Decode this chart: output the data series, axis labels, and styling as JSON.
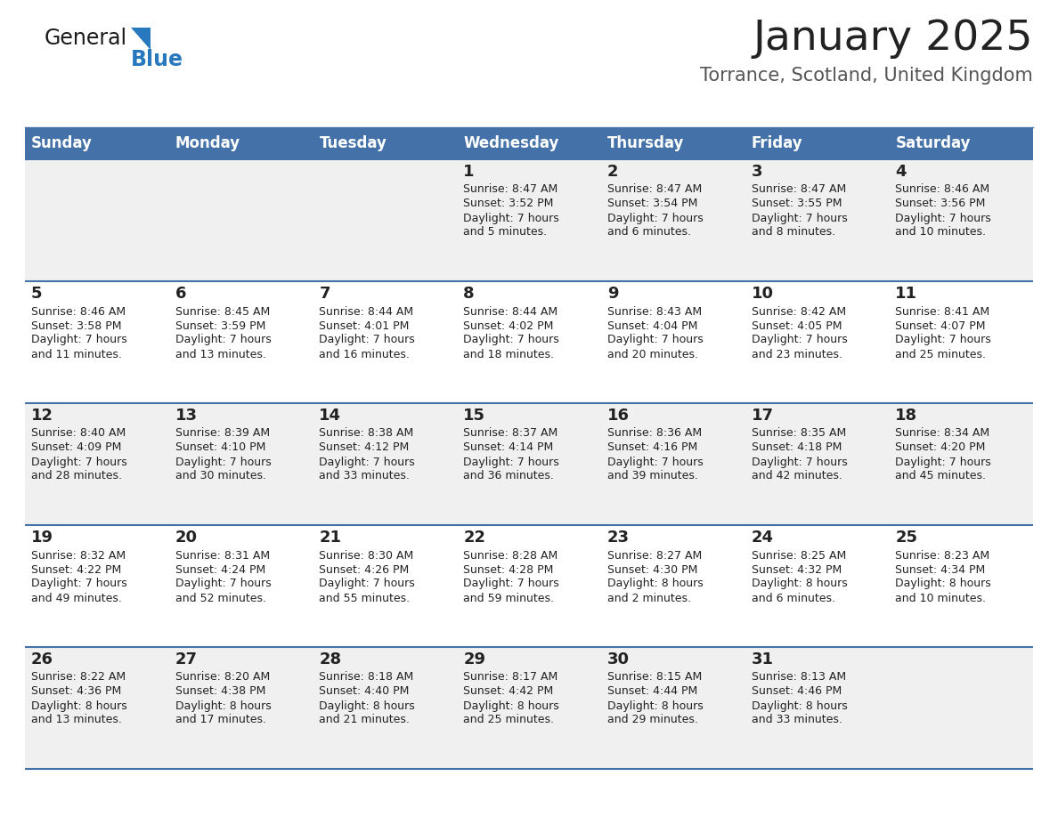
{
  "title": "January 2025",
  "subtitle": "Torrance, Scotland, United Kingdom",
  "header_bg_color": "#4472a8",
  "header_text_color": "#ffffff",
  "weekdays": [
    "Sunday",
    "Monday",
    "Tuesday",
    "Wednesday",
    "Thursday",
    "Friday",
    "Saturday"
  ],
  "row_bg_even": "#f0f0f0",
  "row_bg_odd": "#ffffff",
  "cell_border_color": "#4472a8",
  "day_number_color": "#222222",
  "info_text_color": "#222222",
  "subtitle_color": "#555555",
  "calendar": [
    [
      null,
      null,
      null,
      {
        "day": 1,
        "sunrise": "8:47 AM",
        "sunset": "3:52 PM",
        "daylight": "7 hours and 5 minutes."
      },
      {
        "day": 2,
        "sunrise": "8:47 AM",
        "sunset": "3:54 PM",
        "daylight": "7 hours and 6 minutes."
      },
      {
        "day": 3,
        "sunrise": "8:47 AM",
        "sunset": "3:55 PM",
        "daylight": "7 hours and 8 minutes."
      },
      {
        "day": 4,
        "sunrise": "8:46 AM",
        "sunset": "3:56 PM",
        "daylight": "7 hours and 10 minutes."
      }
    ],
    [
      {
        "day": 5,
        "sunrise": "8:46 AM",
        "sunset": "3:58 PM",
        "daylight": "7 hours and 11 minutes."
      },
      {
        "day": 6,
        "sunrise": "8:45 AM",
        "sunset": "3:59 PM",
        "daylight": "7 hours and 13 minutes."
      },
      {
        "day": 7,
        "sunrise": "8:44 AM",
        "sunset": "4:01 PM",
        "daylight": "7 hours and 16 minutes."
      },
      {
        "day": 8,
        "sunrise": "8:44 AM",
        "sunset": "4:02 PM",
        "daylight": "7 hours and 18 minutes."
      },
      {
        "day": 9,
        "sunrise": "8:43 AM",
        "sunset": "4:04 PM",
        "daylight": "7 hours and 20 minutes."
      },
      {
        "day": 10,
        "sunrise": "8:42 AM",
        "sunset": "4:05 PM",
        "daylight": "7 hours and 23 minutes."
      },
      {
        "day": 11,
        "sunrise": "8:41 AM",
        "sunset": "4:07 PM",
        "daylight": "7 hours and 25 minutes."
      }
    ],
    [
      {
        "day": 12,
        "sunrise": "8:40 AM",
        "sunset": "4:09 PM",
        "daylight": "7 hours and 28 minutes."
      },
      {
        "day": 13,
        "sunrise": "8:39 AM",
        "sunset": "4:10 PM",
        "daylight": "7 hours and 30 minutes."
      },
      {
        "day": 14,
        "sunrise": "8:38 AM",
        "sunset": "4:12 PM",
        "daylight": "7 hours and 33 minutes."
      },
      {
        "day": 15,
        "sunrise": "8:37 AM",
        "sunset": "4:14 PM",
        "daylight": "7 hours and 36 minutes."
      },
      {
        "day": 16,
        "sunrise": "8:36 AM",
        "sunset": "4:16 PM",
        "daylight": "7 hours and 39 minutes."
      },
      {
        "day": 17,
        "sunrise": "8:35 AM",
        "sunset": "4:18 PM",
        "daylight": "7 hours and 42 minutes."
      },
      {
        "day": 18,
        "sunrise": "8:34 AM",
        "sunset": "4:20 PM",
        "daylight": "7 hours and 45 minutes."
      }
    ],
    [
      {
        "day": 19,
        "sunrise": "8:32 AM",
        "sunset": "4:22 PM",
        "daylight": "7 hours and 49 minutes."
      },
      {
        "day": 20,
        "sunrise": "8:31 AM",
        "sunset": "4:24 PM",
        "daylight": "7 hours and 52 minutes."
      },
      {
        "day": 21,
        "sunrise": "8:30 AM",
        "sunset": "4:26 PM",
        "daylight": "7 hours and 55 minutes."
      },
      {
        "day": 22,
        "sunrise": "8:28 AM",
        "sunset": "4:28 PM",
        "daylight": "7 hours and 59 minutes."
      },
      {
        "day": 23,
        "sunrise": "8:27 AM",
        "sunset": "4:30 PM",
        "daylight": "8 hours and 2 minutes."
      },
      {
        "day": 24,
        "sunrise": "8:25 AM",
        "sunset": "4:32 PM",
        "daylight": "8 hours and 6 minutes."
      },
      {
        "day": 25,
        "sunrise": "8:23 AM",
        "sunset": "4:34 PM",
        "daylight": "8 hours and 10 minutes."
      }
    ],
    [
      {
        "day": 26,
        "sunrise": "8:22 AM",
        "sunset": "4:36 PM",
        "daylight": "8 hours and 13 minutes."
      },
      {
        "day": 27,
        "sunrise": "8:20 AM",
        "sunset": "4:38 PM",
        "daylight": "8 hours and 17 minutes."
      },
      {
        "day": 28,
        "sunrise": "8:18 AM",
        "sunset": "4:40 PM",
        "daylight": "8 hours and 21 minutes."
      },
      {
        "day": 29,
        "sunrise": "8:17 AM",
        "sunset": "4:42 PM",
        "daylight": "8 hours and 25 minutes."
      },
      {
        "day": 30,
        "sunrise": "8:15 AM",
        "sunset": "4:44 PM",
        "daylight": "8 hours and 29 minutes."
      },
      {
        "day": 31,
        "sunrise": "8:13 AM",
        "sunset": "4:46 PM",
        "daylight": "8 hours and 33 minutes."
      },
      null
    ]
  ],
  "logo_color_general": "#1a1a1a",
  "logo_color_blue": "#2878be",
  "logo_triangle_color": "#2878be",
  "title_fontsize": 34,
  "subtitle_fontsize": 15,
  "header_fontsize": 12,
  "day_fontsize": 13,
  "info_fontsize": 9
}
